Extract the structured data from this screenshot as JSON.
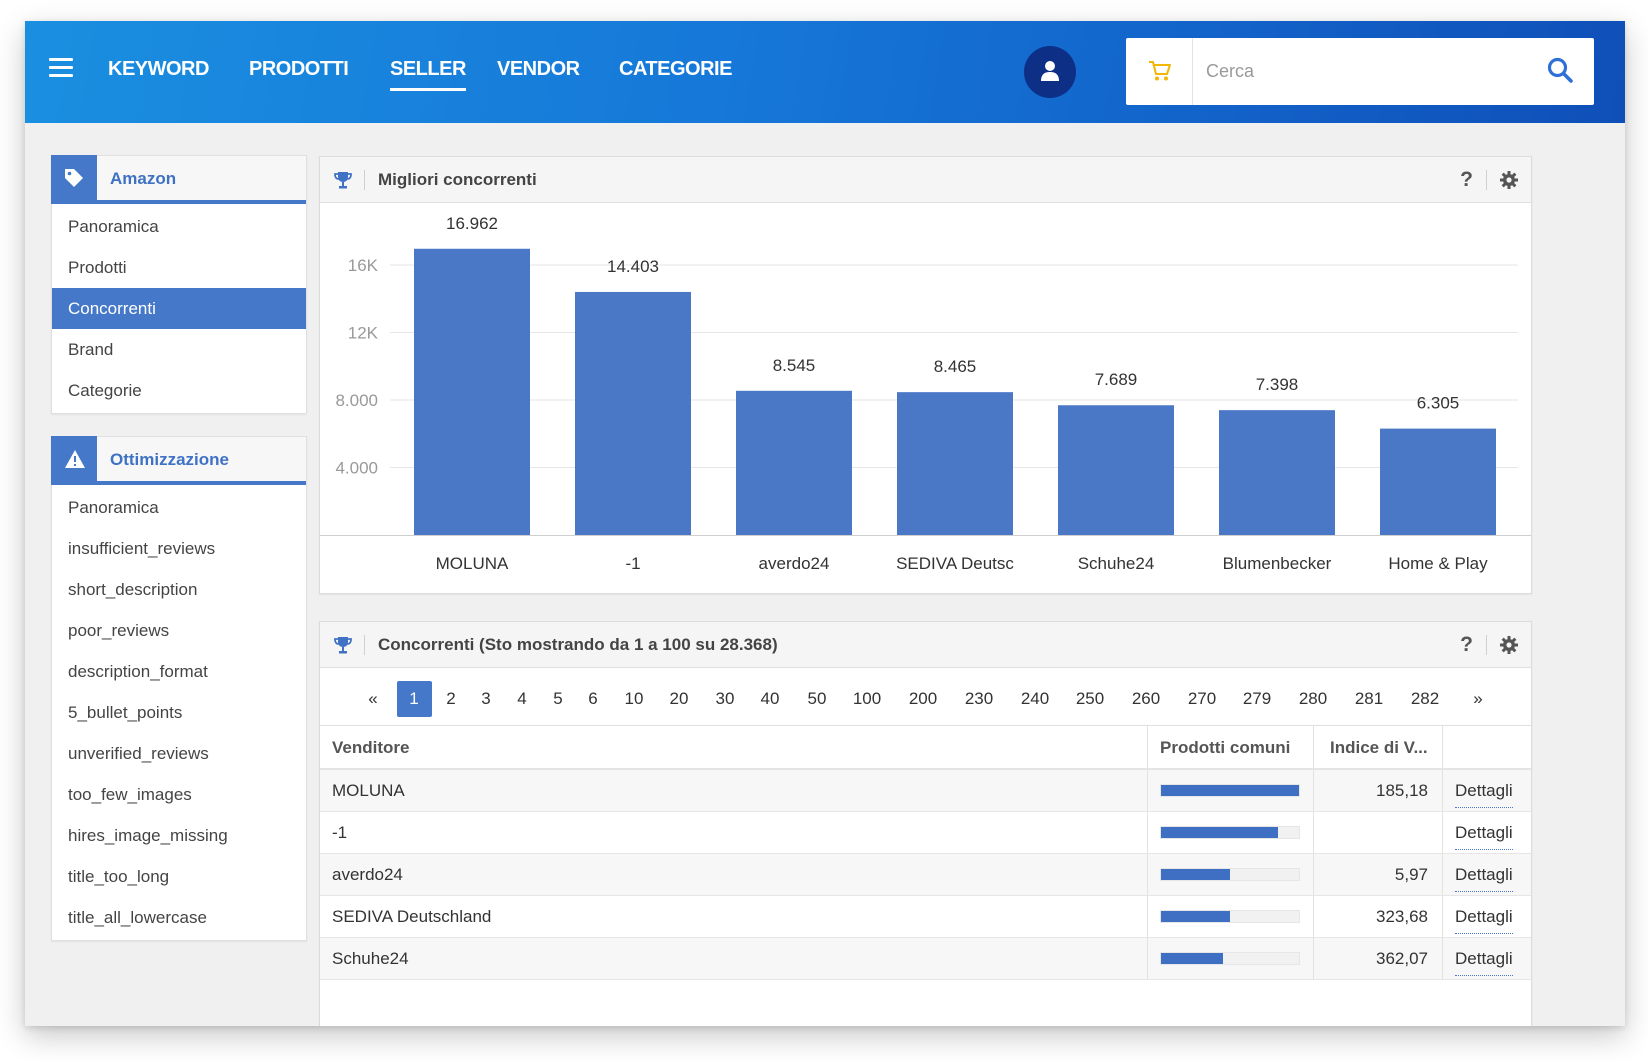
{
  "nav": {
    "items": [
      {
        "label": "KEYWORD",
        "active": false
      },
      {
        "label": "PRODOTTI",
        "active": false
      },
      {
        "label": "SELLER",
        "active": true
      },
      {
        "label": "VENDOR",
        "active": false
      },
      {
        "label": "CATEGORIE",
        "active": false
      }
    ],
    "search_placeholder": "Cerca"
  },
  "sidebar": {
    "amazon": {
      "title": "Amazon",
      "items": [
        "Panoramica",
        "Prodotti",
        "Concorrenti",
        "Brand",
        "Categorie"
      ],
      "active_item": "Concorrenti"
    },
    "ottimizzazione": {
      "title": "Ottimizzazione",
      "items": [
        "Panoramica",
        "insufficient_reviews",
        "short_description",
        "poor_reviews",
        "description_format",
        "5_bullet_points",
        "unverified_reviews",
        "too_few_images",
        "hires_image_missing",
        "title_too_long",
        "title_all_lowercase"
      ]
    }
  },
  "chart_card": {
    "title": "Migliori concorrenti",
    "help": "?"
  },
  "chart_data": {
    "type": "bar",
    "categories": [
      "MOLUNA",
      "-1",
      "averdo24",
      "SEDIVA Deutsc",
      "Schuhe24",
      "Blumenbecker",
      "Home & Play"
    ],
    "values": [
      16962,
      14403,
      8545,
      8465,
      7689,
      7398,
      6305
    ],
    "value_labels": [
      "16.962",
      "14.403",
      "8.545",
      "8.465",
      "7.689",
      "7.398",
      "6.305"
    ],
    "yticks": [
      4000,
      8000,
      12000,
      16000
    ],
    "ytick_labels": [
      "4.000",
      "8.000",
      "12K",
      "16K"
    ],
    "ylim": [
      0,
      18000
    ],
    "bar_color": "#4a78c7",
    "grid": true
  },
  "table_card": {
    "title": "Concorrenti (Sto mostrando da 1 a 100 su 28.368)",
    "help": "?",
    "pager": {
      "prev": "«",
      "next": "»",
      "pages": [
        "1",
        "2",
        "3",
        "4",
        "5",
        "6",
        "10",
        "20",
        "30",
        "40",
        "50",
        "100",
        "200",
        "230",
        "240",
        "250",
        "260",
        "270",
        "279",
        "280",
        "281",
        "282"
      ],
      "current": "1"
    },
    "columns": [
      "Venditore",
      "Prodotti comuni",
      "Indice di V..."
    ],
    "rows": [
      {
        "seller": "MOLUNA",
        "common_fraction": 1.0,
        "index": "185,18",
        "action": "Dettagli"
      },
      {
        "seller": "-1",
        "common_fraction": 0.85,
        "index": "",
        "action": "Dettagli"
      },
      {
        "seller": "averdo24",
        "common_fraction": 0.5,
        "index": "5,97",
        "action": "Dettagli"
      },
      {
        "seller": "SEDIVA Deutschland",
        "common_fraction": 0.5,
        "index": "323,68",
        "action": "Dettagli"
      },
      {
        "seller": "Schuhe24",
        "common_fraction": 0.45,
        "index": "362,07",
        "action": "Dettagli"
      }
    ]
  },
  "colors": {
    "accent": "#4578c8",
    "header_dark": "#0d2f86",
    "cart": "#f2b705"
  }
}
